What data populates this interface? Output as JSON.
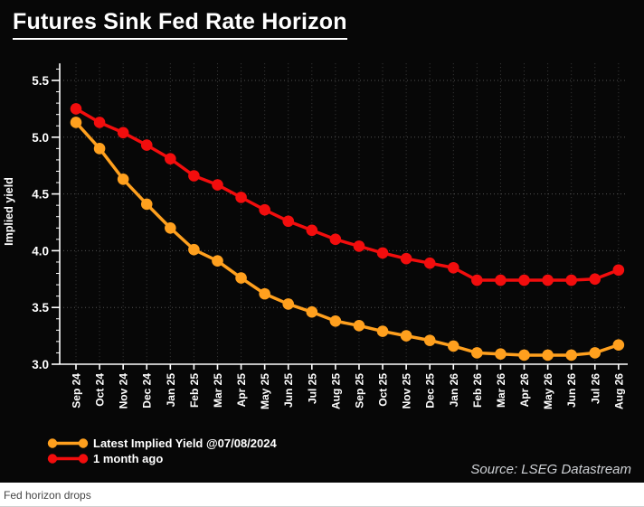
{
  "header": {
    "title": "Futures Sink Fed Rate Horizon"
  },
  "chart_data": {
    "type": "line",
    "title": "Futures Sink Fed Rate Horizon",
    "xlabel": "",
    "ylabel": "Implied yield",
    "ylim": [
      3.0,
      5.65
    ],
    "yticks": [
      3.0,
      3.5,
      4.0,
      4.5,
      5.0,
      5.5
    ],
    "grid": true,
    "legend_position": "bottom-left",
    "categories": [
      "Sep 24",
      "Oct 24",
      "Nov 24",
      "Dec 24",
      "Jan 25",
      "Feb 25",
      "Mar 25",
      "Apr 25",
      "May 25",
      "Jun 25",
      "Jul 25",
      "Aug 25",
      "Sep 25",
      "Oct 25",
      "Nov 25",
      "Dec 25",
      "Jan 26",
      "Feb 26",
      "Mar 26",
      "Apr 26",
      "May 26",
      "Jun 26",
      "Jul 26",
      "Aug 26"
    ],
    "series": [
      {
        "name": "Latest Implied Yield @07/08/2024",
        "color": "#FFA01E",
        "values": [
          5.13,
          4.9,
          4.63,
          4.41,
          4.2,
          4.01,
          3.91,
          3.76,
          3.62,
          3.53,
          3.46,
          3.38,
          3.34,
          3.29,
          3.25,
          3.21,
          3.16,
          3.1,
          3.09,
          3.08,
          3.08,
          3.08,
          3.1,
          3.17
        ]
      },
      {
        "name": "1 month ago",
        "color": "#F20D0D",
        "values": [
          5.25,
          5.13,
          5.04,
          4.93,
          4.81,
          4.66,
          4.58,
          4.47,
          4.36,
          4.26,
          4.18,
          4.1,
          4.04,
          3.98,
          3.93,
          3.89,
          3.85,
          3.74,
          3.74,
          3.74,
          3.74,
          3.74,
          3.75,
          3.83
        ]
      }
    ]
  },
  "source": {
    "label": "Source: LSEG Datastream"
  },
  "caption": {
    "label": "Fed horizon drops"
  },
  "colors": {
    "background": "#070707",
    "axis": "#ffffff",
    "grid_horizontal": "#525252",
    "grid_vertical": "#3c3c3c",
    "series_latest": "#FFA01E",
    "series_month_ago": "#F20D0D"
  }
}
